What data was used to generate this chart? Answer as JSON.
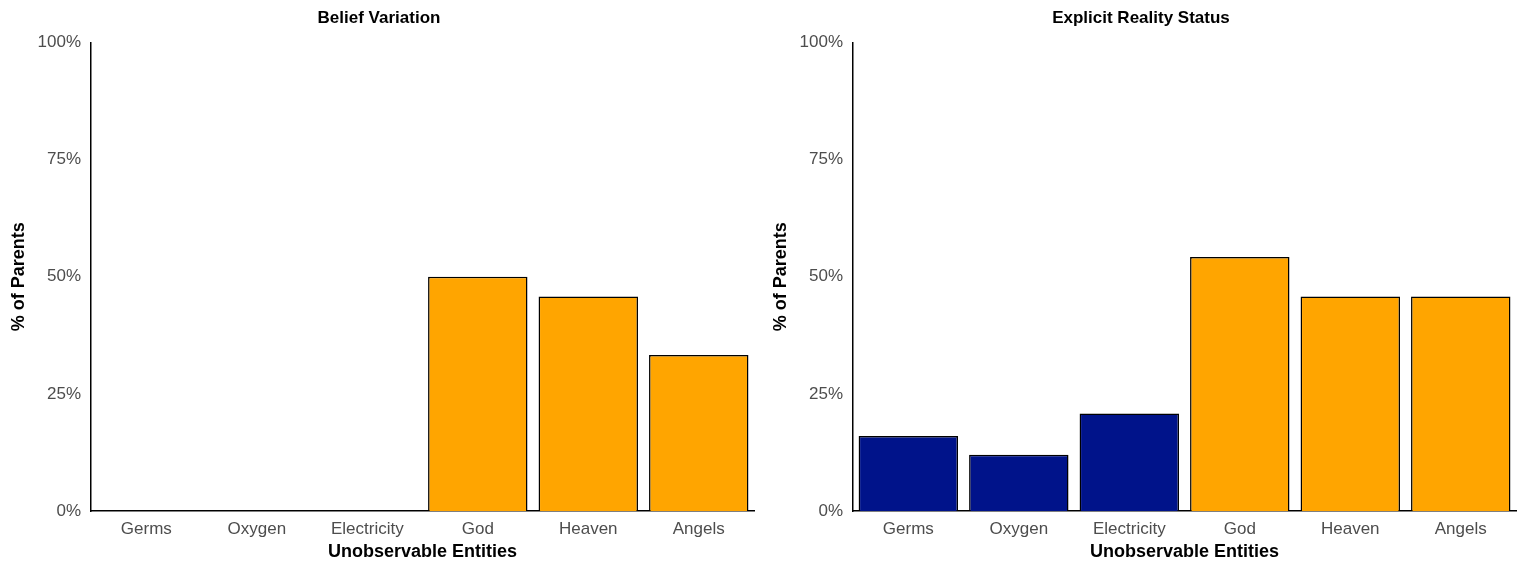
{
  "chart_data": [
    {
      "type": "bar",
      "title": "Belief Variation",
      "xlabel": "Unobservable Entities",
      "ylabel": "% of Parents",
      "categories": [
        "Germs",
        "Oxygen",
        "Electricity",
        "God",
        "Heaven",
        "Angels"
      ],
      "values": [
        0,
        0,
        0,
        50,
        45.8,
        33.3
      ],
      "colors": [
        "#00138a",
        "#00138a",
        "#00138a",
        "#ffa500",
        "#ffa500",
        "#ffa500"
      ],
      "ylim": [
        0,
        100
      ],
      "yticks": [
        {
          "value": 0,
          "label": "0%"
        },
        {
          "value": 25,
          "label": "25%"
        },
        {
          "value": 50,
          "label": "50%"
        },
        {
          "value": 75,
          "label": "75%"
        },
        {
          "value": 100,
          "label": "100%"
        }
      ],
      "grid": false,
      "legend": false
    },
    {
      "type": "bar",
      "title": "Explicit Reality Status",
      "xlabel": "Unobservable Entities",
      "ylabel": "% of Parents",
      "categories": [
        "Germs",
        "Oxygen",
        "Electricity",
        "God",
        "Heaven",
        "Angels"
      ],
      "values": [
        16,
        12,
        20.8,
        54.2,
        45.8,
        45.8
      ],
      "colors": [
        "#00138a",
        "#00138a",
        "#00138a",
        "#ffa500",
        "#ffa500",
        "#ffa500"
      ],
      "ylim": [
        0,
        100
      ],
      "yticks": [
        {
          "value": 0,
          "label": "0%"
        },
        {
          "value": 25,
          "label": "25%"
        },
        {
          "value": 50,
          "label": "50%"
        },
        {
          "value": 75,
          "label": "75%"
        },
        {
          "value": 100,
          "label": "100%"
        }
      ],
      "grid": false,
      "legend": false
    }
  ]
}
